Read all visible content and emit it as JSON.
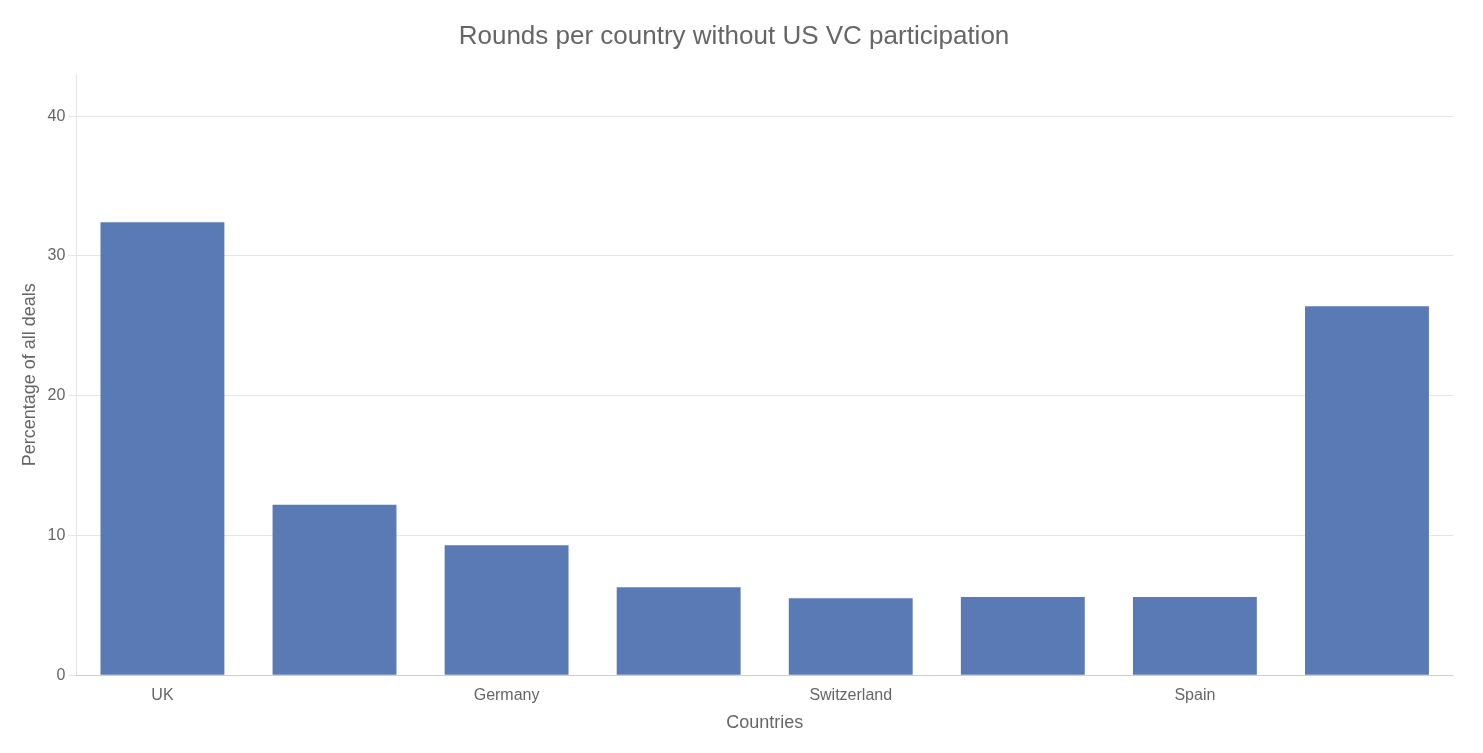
{
  "chart_data": {
    "type": "bar",
    "title": "Rounds per country without US VC participation",
    "xlabel": "Countries",
    "ylabel": "Percentage of all deals",
    "categories": [
      "UK",
      null,
      "Germany",
      null,
      "Switzerland",
      null,
      "Spain",
      null
    ],
    "values": [
      32.4,
      12.2,
      9.3,
      6.3,
      5.5,
      5.6,
      5.6,
      26.4
    ],
    "color": "#5a7ab5",
    "ylim": [
      0,
      43
    ],
    "yticks": [
      0,
      10,
      20,
      30,
      40
    ],
    "grid": true
  }
}
